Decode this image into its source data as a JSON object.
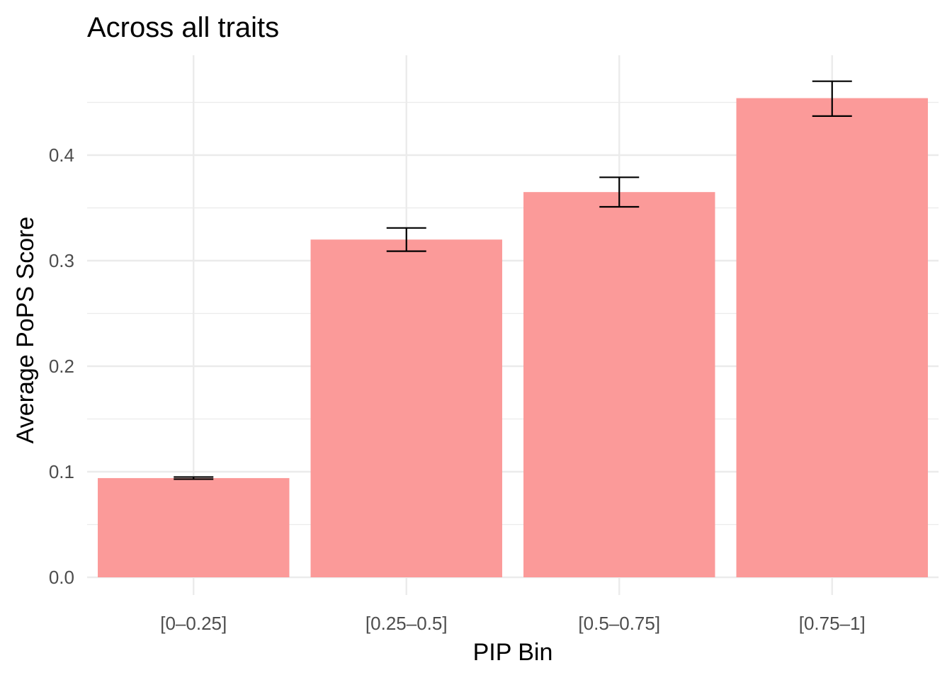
{
  "chart_data": {
    "type": "bar",
    "title": "Across all traits",
    "xlabel": "PIP Bin",
    "ylabel": "Average PoPS Score",
    "categories": [
      "[0–0.25]",
      "[0.25–0.5]",
      "[0.5–0.75]",
      "[0.75–1]"
    ],
    "values": [
      0.094,
      0.32,
      0.365,
      0.454
    ],
    "error_low": [
      0.093,
      0.309,
      0.351,
      0.437
    ],
    "error_high": [
      0.095,
      0.331,
      0.379,
      0.47
    ],
    "ylim": [
      0,
      0.5
    ],
    "yticks": [
      0.0,
      0.1,
      0.2,
      0.3,
      0.4
    ],
    "ytick_labels": [
      "0.0",
      "0.1",
      "0.2",
      "0.3",
      "0.4"
    ],
    "grid": true,
    "legend": "none",
    "bar_color": "#fb9a99",
    "error_bar_color": "#000000",
    "grid_color": "#ebebeb"
  }
}
